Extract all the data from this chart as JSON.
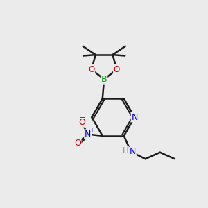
{
  "bg_color": "#ebebeb",
  "atom_colors": {
    "C": "#000000",
    "H": "#7a9a7a",
    "N": "#0000cc",
    "O": "#cc0000",
    "B": "#00aa00"
  },
  "bond_color": "#1a1a1a",
  "bond_width": 1.8,
  "fig_width": 3.0,
  "fig_height": 3.0,
  "dpi": 100
}
